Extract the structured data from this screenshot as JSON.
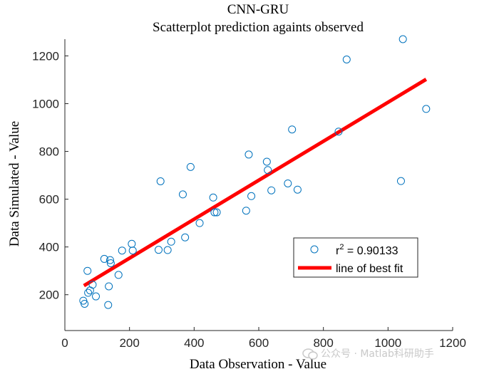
{
  "chart_data": {
    "type": "scatter",
    "title": "CNN-GRU",
    "subtitle": "Scatterplot prediction againts observed",
    "xlabel": "Data Observation - Value",
    "ylabel": "Data Simulated - Value",
    "xlim": [
      0,
      1200
    ],
    "ylim": [
      50,
      1270
    ],
    "xticks": [
      0,
      200,
      400,
      600,
      800,
      1000,
      1200
    ],
    "yticks": [
      200,
      400,
      600,
      800,
      1000,
      1200
    ],
    "grid": false,
    "legend_position": "lower-right",
    "legend": {
      "points_label_base": "r",
      "points_label_sup": "2",
      "points_label_rest": " = 0.90133",
      "line_label": "line of best fit"
    },
    "colors": {
      "points": "#0072BD",
      "fit_line": "#FF0000"
    },
    "series": [
      {
        "marker": "open-circle",
        "x": [
          57,
          61,
          70,
          72,
          78,
          86,
          96,
          122,
          134,
          136,
          140,
          142,
          166,
          177,
          207,
          210,
          290,
          296,
          318,
          329,
          365,
          372,
          389,
          417,
          459,
          463,
          470,
          561,
          569,
          577,
          625,
          628,
          639,
          690,
          703,
          720,
          847,
          872,
          1040,
          1046,
          1118
        ],
        "y": [
          175,
          162,
          300,
          208,
          218,
          242,
          193,
          350,
          157,
          235,
          345,
          332,
          283,
          385,
          413,
          385,
          388,
          675,
          387,
          422,
          620,
          440,
          735,
          500,
          607,
          545,
          545,
          552,
          787,
          613,
          757,
          722,
          637,
          666,
          892,
          640,
          883,
          1185,
          676,
          1270,
          978
        ]
      },
      {
        "type": "line",
        "x": [
          59,
          1118
        ],
        "y": [
          238,
          1102
        ]
      }
    ]
  },
  "watermark": {
    "text": "公众号 · Matlab科研助手"
  }
}
